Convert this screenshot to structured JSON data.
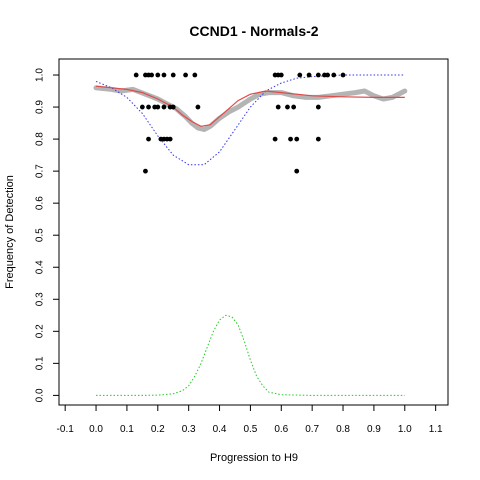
{
  "chart_data": {
    "type": "scatter",
    "title": "CCND1 - Normals-2",
    "xlabel": "Progression to H9",
    "ylabel": "Frequency of Detection",
    "xlim": [
      -0.12,
      1.14
    ],
    "ylim": [
      -0.03,
      1.05
    ],
    "xticks": [
      -0.1,
      0.0,
      0.1,
      0.2,
      0.3,
      0.4,
      0.5,
      0.6,
      0.7,
      0.8,
      0.9,
      1.0,
      1.1
    ],
    "xtick_labels": [
      "-0.1",
      "0.0",
      "0.1",
      "0.2",
      "0.3",
      "0.4",
      "0.5",
      "0.6",
      "0.7",
      "0.8",
      "0.9",
      "1.0",
      "1.1"
    ],
    "yticks": [
      0.0,
      0.1,
      0.2,
      0.3,
      0.4,
      0.5,
      0.6,
      0.7,
      0.8,
      0.9,
      1.0
    ],
    "ytick_labels": [
      "0.0",
      "0.1",
      "0.2",
      "0.3",
      "0.4",
      "0.5",
      "0.6",
      "0.7",
      "0.8",
      "0.9",
      "1.0"
    ],
    "colors": {
      "points": "#000000",
      "smooth_gray": "#b4b4b4",
      "fit_red": "#e04a4a",
      "blue_dotted": "#3333ee",
      "green_dotted": "#22cc22"
    },
    "series": [
      {
        "type": "scatter",
        "points": [
          [
            0.13,
            1.0
          ],
          [
            0.16,
            1.0
          ],
          [
            0.17,
            1.0
          ],
          [
            0.18,
            1.0
          ],
          [
            0.2,
            1.0
          ],
          [
            0.22,
            1.0
          ],
          [
            0.25,
            1.0
          ],
          [
            0.29,
            1.0
          ],
          [
            0.32,
            1.0
          ],
          [
            0.15,
            0.9
          ],
          [
            0.17,
            0.9
          ],
          [
            0.19,
            0.9
          ],
          [
            0.2,
            0.9
          ],
          [
            0.22,
            0.9
          ],
          [
            0.24,
            0.9
          ],
          [
            0.25,
            0.9
          ],
          [
            0.33,
            0.9
          ],
          [
            0.17,
            0.8
          ],
          [
            0.21,
            0.8
          ],
          [
            0.22,
            0.8
          ],
          [
            0.23,
            0.8
          ],
          [
            0.24,
            0.8
          ],
          [
            0.16,
            0.7
          ],
          [
            0.58,
            1.0
          ],
          [
            0.59,
            1.0
          ],
          [
            0.6,
            1.0
          ],
          [
            0.66,
            1.0
          ],
          [
            0.69,
            1.0
          ],
          [
            0.72,
            1.0
          ],
          [
            0.74,
            1.0
          ],
          [
            0.75,
            1.0
          ],
          [
            0.77,
            1.0
          ],
          [
            0.8,
            1.0
          ],
          [
            0.59,
            0.9
          ],
          [
            0.62,
            0.9
          ],
          [
            0.64,
            0.9
          ],
          [
            0.72,
            0.9
          ],
          [
            0.58,
            0.8
          ],
          [
            0.63,
            0.8
          ],
          [
            0.65,
            0.8
          ],
          [
            0.72,
            0.8
          ],
          [
            0.65,
            0.7
          ]
        ]
      },
      {
        "type": "line",
        "style": "thick-gray",
        "points": [
          [
            0.0,
            0.96
          ],
          [
            0.05,
            0.955
          ],
          [
            0.08,
            0.95
          ],
          [
            0.12,
            0.955
          ],
          [
            0.16,
            0.94
          ],
          [
            0.2,
            0.925
          ],
          [
            0.23,
            0.91
          ],
          [
            0.26,
            0.895
          ],
          [
            0.29,
            0.87
          ],
          [
            0.31,
            0.85
          ],
          [
            0.33,
            0.835
          ],
          [
            0.35,
            0.83
          ],
          [
            0.37,
            0.84
          ],
          [
            0.4,
            0.865
          ],
          [
            0.43,
            0.885
          ],
          [
            0.46,
            0.9
          ],
          [
            0.5,
            0.925
          ],
          [
            0.53,
            0.94
          ],
          [
            0.56,
            0.945
          ],
          [
            0.6,
            0.945
          ],
          [
            0.64,
            0.935
          ],
          [
            0.68,
            0.93
          ],
          [
            0.72,
            0.93
          ],
          [
            0.76,
            0.935
          ],
          [
            0.8,
            0.94
          ],
          [
            0.84,
            0.945
          ],
          [
            0.87,
            0.95
          ],
          [
            0.9,
            0.935
          ],
          [
            0.93,
            0.925
          ],
          [
            0.96,
            0.93
          ],
          [
            1.0,
            0.95
          ]
        ]
      },
      {
        "type": "line",
        "style": "red",
        "points": [
          [
            0.0,
            0.965
          ],
          [
            0.05,
            0.96
          ],
          [
            0.1,
            0.955
          ],
          [
            0.15,
            0.945
          ],
          [
            0.2,
            0.925
          ],
          [
            0.25,
            0.9
          ],
          [
            0.28,
            0.875
          ],
          [
            0.31,
            0.855
          ],
          [
            0.34,
            0.84
          ],
          [
            0.37,
            0.845
          ],
          [
            0.4,
            0.87
          ],
          [
            0.43,
            0.895
          ],
          [
            0.46,
            0.92
          ],
          [
            0.5,
            0.94
          ],
          [
            0.55,
            0.95
          ],
          [
            0.6,
            0.945
          ],
          [
            0.7,
            0.935
          ],
          [
            0.8,
            0.932
          ],
          [
            0.9,
            0.93
          ],
          [
            1.0,
            0.93
          ]
        ]
      },
      {
        "type": "line",
        "style": "blue-dotted",
        "points": [
          [
            0.0,
            0.98
          ],
          [
            0.05,
            0.96
          ],
          [
            0.1,
            0.93
          ],
          [
            0.15,
            0.88
          ],
          [
            0.2,
            0.81
          ],
          [
            0.25,
            0.75
          ],
          [
            0.3,
            0.72
          ],
          [
            0.35,
            0.72
          ],
          [
            0.4,
            0.76
          ],
          [
            0.45,
            0.83
          ],
          [
            0.5,
            0.9
          ],
          [
            0.55,
            0.95
          ],
          [
            0.6,
            0.975
          ],
          [
            0.65,
            0.99
          ],
          [
            0.7,
            0.995
          ],
          [
            0.8,
            1.0
          ],
          [
            0.9,
            1.0
          ],
          [
            1.0,
            1.0
          ]
        ]
      },
      {
        "type": "line",
        "style": "green-dotted",
        "points": [
          [
            0.0,
            0.0
          ],
          [
            0.15,
            0.0
          ],
          [
            0.2,
            0.001
          ],
          [
            0.25,
            0.005
          ],
          [
            0.28,
            0.015
          ],
          [
            0.3,
            0.03
          ],
          [
            0.32,
            0.06
          ],
          [
            0.34,
            0.1
          ],
          [
            0.36,
            0.15
          ],
          [
            0.38,
            0.2
          ],
          [
            0.4,
            0.235
          ],
          [
            0.42,
            0.25
          ],
          [
            0.44,
            0.245
          ],
          [
            0.46,
            0.22
          ],
          [
            0.48,
            0.17
          ],
          [
            0.5,
            0.11
          ],
          [
            0.52,
            0.06
          ],
          [
            0.54,
            0.03
          ],
          [
            0.56,
            0.01
          ],
          [
            0.6,
            0.002
          ],
          [
            0.7,
            0.0
          ],
          [
            1.0,
            0.0
          ]
        ]
      }
    ]
  }
}
